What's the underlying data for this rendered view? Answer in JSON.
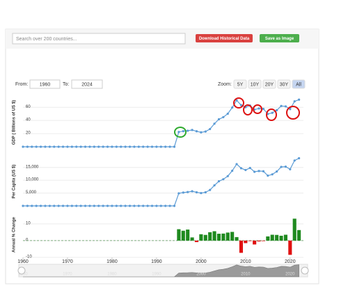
{
  "ui": {
    "search_placeholder": "Search over 200 countries...",
    "download_button": "Download Historical Data",
    "save_button": "Save as Image",
    "from_label": "From:",
    "from_value": "1960",
    "to_label": "To:",
    "to_value": "2024",
    "zoom_label": "Zoom:",
    "zoom_buttons": [
      "5Y",
      "10Y",
      "20Y",
      "30Y",
      "All"
    ]
  },
  "chart_data": [
    {
      "type": "line",
      "y_label": "GDP ( Billions of US $)",
      "xlim": [
        1960,
        2023
      ],
      "ylim": [
        0,
        74
      ],
      "yticks": [
        20,
        40,
        60
      ],
      "grid": true,
      "x": [
        1960,
        1961,
        1962,
        1963,
        1964,
        1965,
        1966,
        1967,
        1968,
        1969,
        1970,
        1971,
        1972,
        1973,
        1974,
        1975,
        1976,
        1977,
        1978,
        1979,
        1980,
        1981,
        1982,
        1983,
        1984,
        1985,
        1986,
        1987,
        1988,
        1989,
        1990,
        1991,
        1992,
        1993,
        1994,
        1995,
        1996,
        1997,
        1998,
        1999,
        2000,
        2001,
        2002,
        2003,
        2004,
        2005,
        2006,
        2007,
        2008,
        2009,
        2010,
        2011,
        2012,
        2013,
        2014,
        2015,
        2016,
        2017,
        2018,
        2019,
        2020,
        2021,
        2022
      ],
      "series": [
        {
          "color": "#5b9bd5",
          "values": [
            0,
            0,
            0,
            0,
            0,
            0,
            0,
            0,
            0,
            0,
            0,
            0,
            0,
            0,
            0,
            0,
            0,
            0,
            0,
            0,
            0,
            0,
            0,
            0,
            0,
            0,
            0,
            0,
            0,
            0,
            0,
            0,
            0,
            0,
            0,
            22.5,
            23.7,
            24.3,
            25.5,
            23.5,
            21.9,
            23.1,
            26.9,
            35.0,
            41.8,
            45.0,
            50.2,
            59.6,
            70.5,
            63.3,
            60.1,
            62.7,
            56.5,
            58.2,
            57.6,
            49.8,
            51.6,
            55.5,
            62.0,
            61.4,
            57.2,
            69.0,
            71.6
          ]
        }
      ]
    },
    {
      "type": "line",
      "y_label": "Per Capita (US $)",
      "xlim": [
        1960,
        2023
      ],
      "ylim": [
        0,
        19000
      ],
      "yticks": [
        {
          "value": 5000,
          "label": "5,000"
        },
        {
          "value": 10000,
          "label": "10,000"
        },
        {
          "value": 15000,
          "label": "15,000"
        }
      ],
      "grid": true,
      "x": [
        1960,
        1961,
        1962,
        1963,
        1964,
        1965,
        1966,
        1967,
        1968,
        1969,
        1970,
        1971,
        1972,
        1973,
        1974,
        1975,
        1976,
        1977,
        1978,
        1979,
        1980,
        1981,
        1982,
        1983,
        1984,
        1985,
        1986,
        1987,
        1988,
        1989,
        1990,
        1991,
        1992,
        1993,
        1994,
        1995,
        1996,
        1997,
        1998,
        1999,
        2000,
        2001,
        2002,
        2003,
        2004,
        2005,
        2006,
        2007,
        2008,
        2009,
        2010,
        2011,
        2012,
        2013,
        2014,
        2015,
        2016,
        2017,
        2018,
        2019,
        2020,
        2021,
        2022
      ],
      "series": [
        {
          "color": "#5b9bd5",
          "values": [
            0,
            0,
            0,
            0,
            0,
            0,
            0,
            0,
            0,
            0,
            0,
            0,
            0,
            0,
            0,
            0,
            0,
            0,
            0,
            0,
            0,
            0,
            0,
            0,
            0,
            0,
            0,
            0,
            0,
            0,
            0,
            0,
            0,
            0,
            0,
            4900,
            5200,
            5400,
            5700,
            5300,
            5000,
            5300,
            6200,
            8000,
            9600,
            10400,
            11600,
            13700,
            16300,
            14700,
            14000,
            14800,
            13300,
            13600,
            13500,
            11800,
            12300,
            13400,
            15200,
            15300,
            14300,
            17700,
            18600
          ]
        }
      ]
    },
    {
      "type": "bar",
      "y_label": "Annual % Change",
      "xlim": [
        1960,
        2023
      ],
      "ylim": [
        -10,
        17
      ],
      "yticks": [
        -10,
        0,
        10
      ],
      "grid": true,
      "xticks": [
        1960,
        1970,
        1980,
        1990,
        2000,
        2010,
        2020
      ],
      "x": [
        1960,
        1961,
        1962,
        1963,
        1964,
        1965,
        1966,
        1967,
        1968,
        1969,
        1970,
        1971,
        1972,
        1973,
        1974,
        1975,
        1976,
        1977,
        1978,
        1979,
        1980,
        1981,
        1982,
        1983,
        1984,
        1985,
        1986,
        1987,
        1988,
        1989,
        1990,
        1991,
        1992,
        1993,
        1994,
        1995,
        1996,
        1997,
        1998,
        1999,
        2000,
        2001,
        2002,
        2003,
        2004,
        2005,
        2006,
        2007,
        2008,
        2009,
        2010,
        2011,
        2012,
        2013,
        2014,
        2015,
        2016,
        2017,
        2018,
        2019,
        2020,
        2021,
        2022
      ],
      "series": [
        {
          "color": "#1f8a1f",
          "negative_color": "#e01010",
          "values": [
            null,
            null,
            null,
            null,
            null,
            null,
            null,
            null,
            null,
            null,
            null,
            null,
            null,
            null,
            null,
            null,
            null,
            null,
            null,
            null,
            null,
            null,
            null,
            null,
            null,
            null,
            null,
            null,
            null,
            null,
            null,
            null,
            null,
            null,
            null,
            6.8,
            5.9,
            6.6,
            1.9,
            -0.9,
            3.8,
            3.4,
            5.0,
            5.6,
            4.1,
            4.2,
            4.8,
            5.2,
            2.1,
            -7.3,
            -1.5,
            -0.3,
            -2.3,
            -0.5,
            -0.3,
            2.5,
            3.5,
            3.4,
            2.9,
            3.5,
            -8.5,
            13.1,
            6.3
          ]
        }
      ]
    }
  ]
}
